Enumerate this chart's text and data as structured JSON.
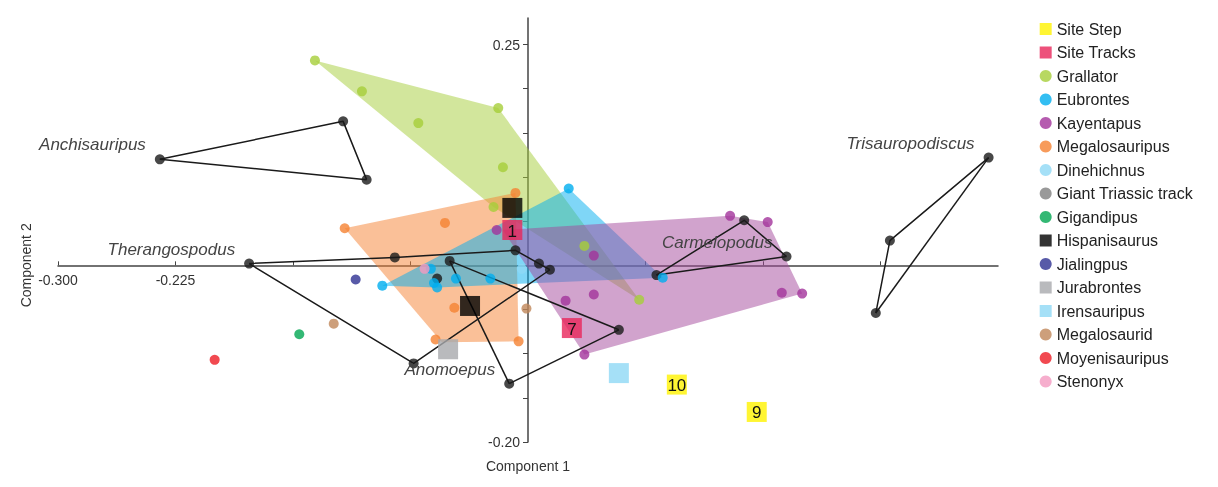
{
  "chart_data": {
    "type": "scatter",
    "xlabel": "Component 1",
    "ylabel": "Component 2",
    "xlim": [
      -0.3,
      0.3
    ],
    "ylim": [
      -0.2,
      0.28
    ],
    "xticks": [
      {
        "value": -0.3,
        "label": "-0.300"
      },
      {
        "value": -0.225,
        "label": "-0.225"
      },
      {
        "value": -0.15,
        "label": null
      },
      {
        "value": -0.075,
        "label": null
      },
      {
        "value": 0.075,
        "label": null
      },
      {
        "value": 0.15,
        "label": null
      },
      {
        "value": 0.225,
        "label": null
      }
    ],
    "yticks": [
      0.25,
      {
        "value": 0.2,
        "label": null
      },
      {
        "value": 0.15,
        "label": null
      },
      {
        "value": 0.1,
        "label": null
      },
      {
        "value": 0.05,
        "label": null
      },
      {
        "value": -0.05,
        "label": null
      },
      {
        "value": -0.1,
        "label": null
      },
      {
        "value": -0.15,
        "label": null
      },
      {
        "value": -0.2,
        "label": "-0.20"
      }
    ],
    "grid": false,
    "legend": "top right",
    "series": [
      {
        "type": "area",
        "color": "#a6ce39",
        "x": [
          -0.136,
          -0.019,
          0.071,
          -0.022,
          -0.136
        ],
        "values": [
          0.232,
          0.178,
          -0.039,
          0.066,
          0.232
        ]
      },
      {
        "type": "area",
        "color": "#f58232",
        "x": [
          -0.117,
          -0.008,
          -0.006,
          -0.055,
          -0.117
        ],
        "values": [
          0.042,
          0.082,
          -0.086,
          -0.087,
          0.042
        ]
      },
      {
        "type": "area",
        "color": "#00aeef",
        "x": [
          -0.093,
          0.026,
          0.086,
          -0.058,
          -0.093
        ],
        "values": [
          -0.023,
          0.087,
          -0.014,
          -0.025,
          -0.023
        ]
      },
      {
        "type": "area",
        "color": "#a3479b",
        "x": [
          -0.016,
          0.129,
          0.153,
          0.175,
          0.036,
          -0.016
        ],
        "values": [
          0.04,
          0.056,
          0.049,
          -0.032,
          -0.101,
          0.04
        ]
      },
      {
        "type": "line",
        "name": "Anchisauripus",
        "color": "#1a1a1a",
        "marker": "none",
        "x": [
          -0.235,
          -0.118,
          -0.103
        ],
        "values": [
          0.12,
          0.163,
          0.097
        ]
      },
      {
        "type": "line",
        "color": "#1a1a1a",
        "marker": "none",
        "x": [
          -0.235,
          -0.103
        ],
        "values": [
          0.12,
          0.097
        ]
      },
      {
        "type": "line",
        "name": "Trisauropodiscus",
        "color": "#1a1a1a",
        "marker": "none",
        "x": [
          0.294,
          0.231,
          0.222
        ],
        "values": [
          0.122,
          0.028,
          -0.054
        ]
      },
      {
        "type": "line",
        "color": "#1a1a1a",
        "marker": "none",
        "x": [
          0.294,
          0.222
        ],
        "values": [
          0.122,
          -0.054
        ]
      },
      {
        "type": "line",
        "name": "Carmelopodus",
        "color": "#1a1a1a",
        "marker": "none",
        "x": [
          0.165,
          0.138,
          0.082
        ],
        "values": [
          0.01,
          0.051,
          -0.011
        ]
      },
      {
        "type": "line",
        "color": "#1a1a1a",
        "marker": "none",
        "x": [
          0.165,
          0.082
        ],
        "values": [
          0.01,
          -0.011
        ]
      },
      {
        "type": "line",
        "name": "Therangospodus",
        "color": "#1a1a1a",
        "marker": "none",
        "x": [
          -0.178,
          -0.085,
          -0.008,
          0.007,
          0.014
        ],
        "values": [
          0.002,
          0.009,
          0.017,
          0.002,
          -0.005
        ]
      },
      {
        "type": "line",
        "color": "#1a1a1a",
        "marker": "none",
        "x": [
          -0.178,
          -0.073,
          0.014
        ],
        "values": [
          0.002,
          -0.111,
          -0.005
        ]
      },
      {
        "type": "line",
        "name": "Anomoepus",
        "color": "#1a1a1a",
        "marker": "none",
        "x": [
          -0.012,
          0.058
        ],
        "values": [
          -0.134,
          -0.073
        ]
      },
      {
        "type": "line",
        "color": "#1a1a1a",
        "marker": "none",
        "x": [
          -0.05,
          -0.012
        ],
        "values": [
          0.005,
          -0.134
        ]
      },
      {
        "type": "line",
        "color": "#1a1a1a",
        "marker": "none",
        "x": [
          -0.05,
          0.058
        ],
        "values": [
          0.005,
          -0.073
        ]
      },
      {
        "type": "scatter",
        "color": "#1a1a1a",
        "marker": "circle",
        "x": [
          -0.118,
          -0.103,
          -0.235,
          0.294,
          0.231,
          0.222,
          0.165,
          0.082,
          0.138,
          -0.178,
          -0.085,
          -0.008,
          0.007,
          0.014,
          -0.073,
          -0.012,
          -0.05,
          0.058,
          -0.058
        ],
        "values": [
          0.163,
          0.097,
          0.12,
          0.122,
          0.028,
          -0.054,
          0.01,
          -0.011,
          0.051,
          0.002,
          0.009,
          0.017,
          0.002,
          -0.005,
          -0.111,
          -0.134,
          0.005,
          -0.073,
          -0.015
        ]
      },
      {
        "name": "Site Step",
        "color": "#fff200",
        "marker": "square",
        "x": [
          0.095,
          0.146
        ],
        "values": [
          -0.135,
          -0.166
        ]
      },
      {
        "name": "Site Tracks",
        "color": "#e8255a",
        "marker": "square",
        "x": [
          -0.01,
          0.028
        ],
        "values": [
          0.04,
          -0.071
        ]
      },
      {
        "name": "Grallator",
        "color": "#a6ce39",
        "marker": "circle",
        "x": [
          -0.136,
          -0.106,
          -0.07,
          -0.019,
          -0.016,
          -0.022,
          0.036,
          0.071
        ],
        "values": [
          0.232,
          0.197,
          0.161,
          0.178,
          0.111,
          0.066,
          0.022,
          -0.039
        ]
      },
      {
        "name": "Eubrontes",
        "color": "#00aeef",
        "marker": "circle",
        "x": [
          0.026,
          -0.093,
          -0.062,
          -0.06,
          -0.058,
          -0.046,
          -0.024,
          0.086
        ],
        "values": [
          0.087,
          -0.023,
          -0.004,
          -0.02,
          -0.025,
          -0.015,
          -0.015,
          -0.014
        ]
      },
      {
        "name": "Kayentapus",
        "color": "#a3339b",
        "marker": "circle",
        "x": [
          -0.02,
          0.129,
          0.153,
          0.162,
          0.175,
          0.042,
          0.042,
          0.024,
          0.036
        ],
        "values": [
          0.04,
          0.056,
          0.049,
          -0.031,
          -0.032,
          0.011,
          -0.033,
          -0.04,
          -0.101
        ]
      },
      {
        "name": "Megalosauripus",
        "color": "#f58232",
        "marker": "circle",
        "x": [
          -0.117,
          -0.053,
          -0.008,
          -0.047,
          -0.059,
          -0.006
        ],
        "values": [
          0.042,
          0.048,
          0.082,
          -0.048,
          -0.084,
          -0.086
        ]
      },
      {
        "name": "Dinehichnus",
        "color": "#8fd8f5",
        "marker": "circle",
        "x": [
          -0.004
        ],
        "values": [
          -0.004
        ]
      },
      {
        "name": "Giant Triassic track",
        "color": "#808080",
        "marker": "circle"
      },
      {
        "name": "Gigandipus",
        "color": "#00a651",
        "marker": "circle",
        "x": [
          -0.146
        ],
        "values": [
          -0.078
        ]
      },
      {
        "name": "Hispanisaurus",
        "color": "#000000",
        "marker": "square",
        "x": [
          -0.01,
          -0.037
        ],
        "values": [
          0.065,
          -0.046
        ]
      },
      {
        "name": "Jialingpus",
        "color": "#2e3192",
        "marker": "circle",
        "x": [
          -0.11
        ],
        "values": [
          -0.016
        ]
      },
      {
        "name": "Jurabrontes",
        "color": "#a7a9ac",
        "marker": "square",
        "x": [
          -0.051
        ],
        "values": [
          -0.095
        ]
      },
      {
        "name": "Irensauripus",
        "color": "#8fd8f5",
        "marker": "square",
        "x": [
          0.058
        ],
        "values": [
          -0.122
        ]
      },
      {
        "name": "Megalosaurid",
        "color": "#c1875a",
        "marker": "circle",
        "x": [
          -0.124,
          -0.001
        ],
        "values": [
          -0.066,
          -0.049
        ]
      },
      {
        "name": "Moyenisauripus",
        "color": "#ed1c24",
        "marker": "circle",
        "x": [
          -0.2
        ],
        "values": [
          -0.107
        ]
      },
      {
        "name": "Stenonyx",
        "color": "#f49ac1",
        "marker": "circle",
        "x": [
          -0.066
        ],
        "values": [
          -0.004
        ]
      }
    ],
    "annotations": [
      {
        "text": "1",
        "x": -0.01,
        "y": 0.04
      },
      {
        "text": "7",
        "x": 0.028,
        "y": -0.071
      },
      {
        "text": "10",
        "x": 0.095,
        "y": -0.135
      },
      {
        "text": "9",
        "x": 0.146,
        "y": -0.166
      }
    ]
  }
}
